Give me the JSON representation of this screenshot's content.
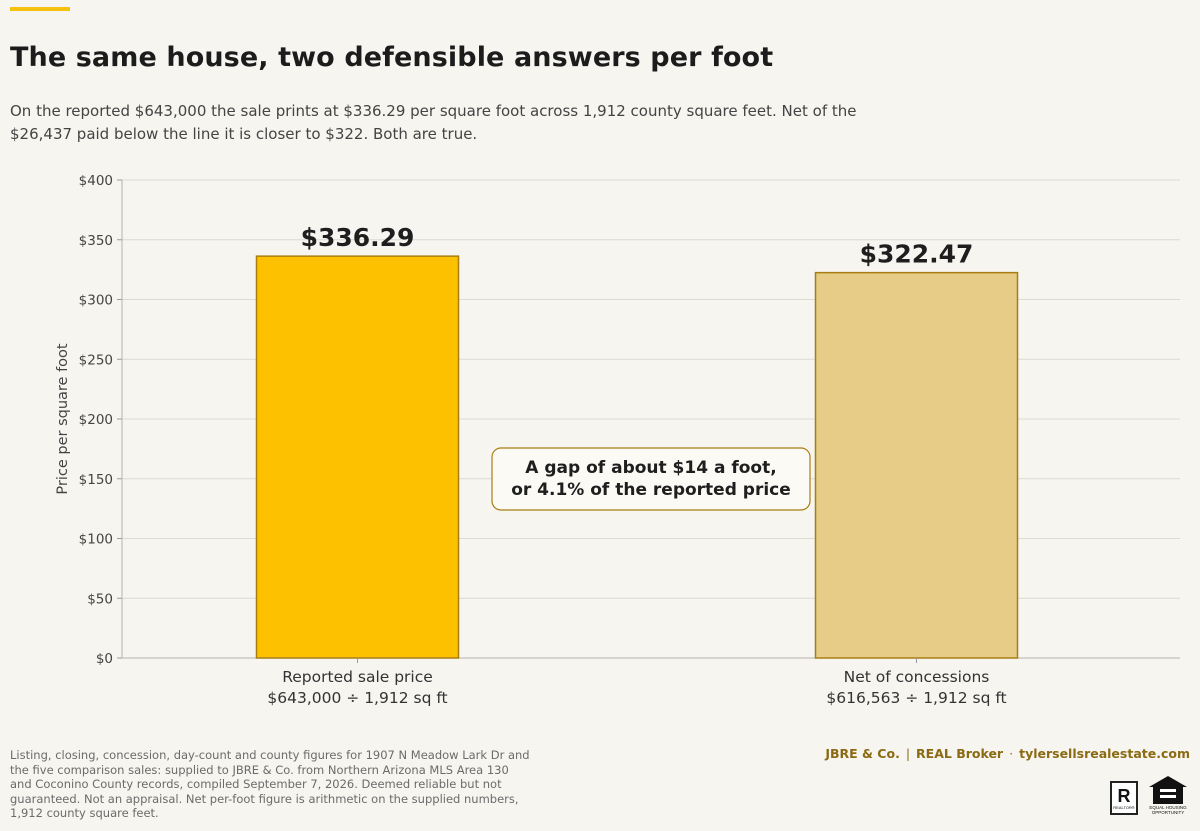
{
  "header": {
    "title": "The same house, two defensible answers per foot",
    "subtitle": "On the reported $643,000 the sale prints at $336.29 per square foot across 1,912 county square feet. Net of the $26,437 paid below the line it is closer to $322. Both are true."
  },
  "chart_data": {
    "type": "bar",
    "categories": [
      [
        "Reported sale price",
        "$643,000 ÷ 1,912 sq ft"
      ],
      [
        "Net of concessions",
        "$616,563 ÷ 1,912 sq ft"
      ]
    ],
    "values": [
      336.29,
      322.47
    ],
    "value_labels": [
      "$336.29",
      "$322.47"
    ],
    "bar_colors": [
      "#fdc100",
      "#e6cc86"
    ],
    "bar_edge_color": "#a87e12",
    "ylabel": "Price per square foot",
    "ylim": [
      0,
      400
    ],
    "yticks": [
      0,
      50,
      100,
      150,
      200,
      250,
      300,
      350,
      400
    ],
    "ytick_labels": [
      "$0",
      "$50",
      "$100",
      "$150",
      "$200",
      "$250",
      "$300",
      "$350",
      "$400"
    ],
    "grid": true,
    "annotation": [
      "A gap of about $14 a foot,",
      "or 4.1% of the reported price"
    ]
  },
  "footer": {
    "note": "Listing, closing, concession, day-count and county figures for 1907 N Meadow Lark Dr and the five comparison sales: supplied to JBRE & Co. from Northern Arizona MLS Area 130 and Coconino County records, compiled September 7, 2026. Deemed reliable but not guaranteed. Not an appraisal. Net per-foot figure is arithmetic on the supplied numbers, 1,912 county square feet.",
    "brand_name": "JBRE & Co.",
    "brokerage": "REAL Broker",
    "website": "tylersellsrealestate.com",
    "sep1": "|",
    "sep2": "·",
    "realtor_mark": "R",
    "realtor_text": "REALTOR®",
    "eho_text": "EQUAL HOUSING OPPORTUNITY"
  },
  "colors": {
    "accent": "#f5c10e",
    "brand_text": "#8a6a12",
    "background": "#f6f5f0"
  }
}
